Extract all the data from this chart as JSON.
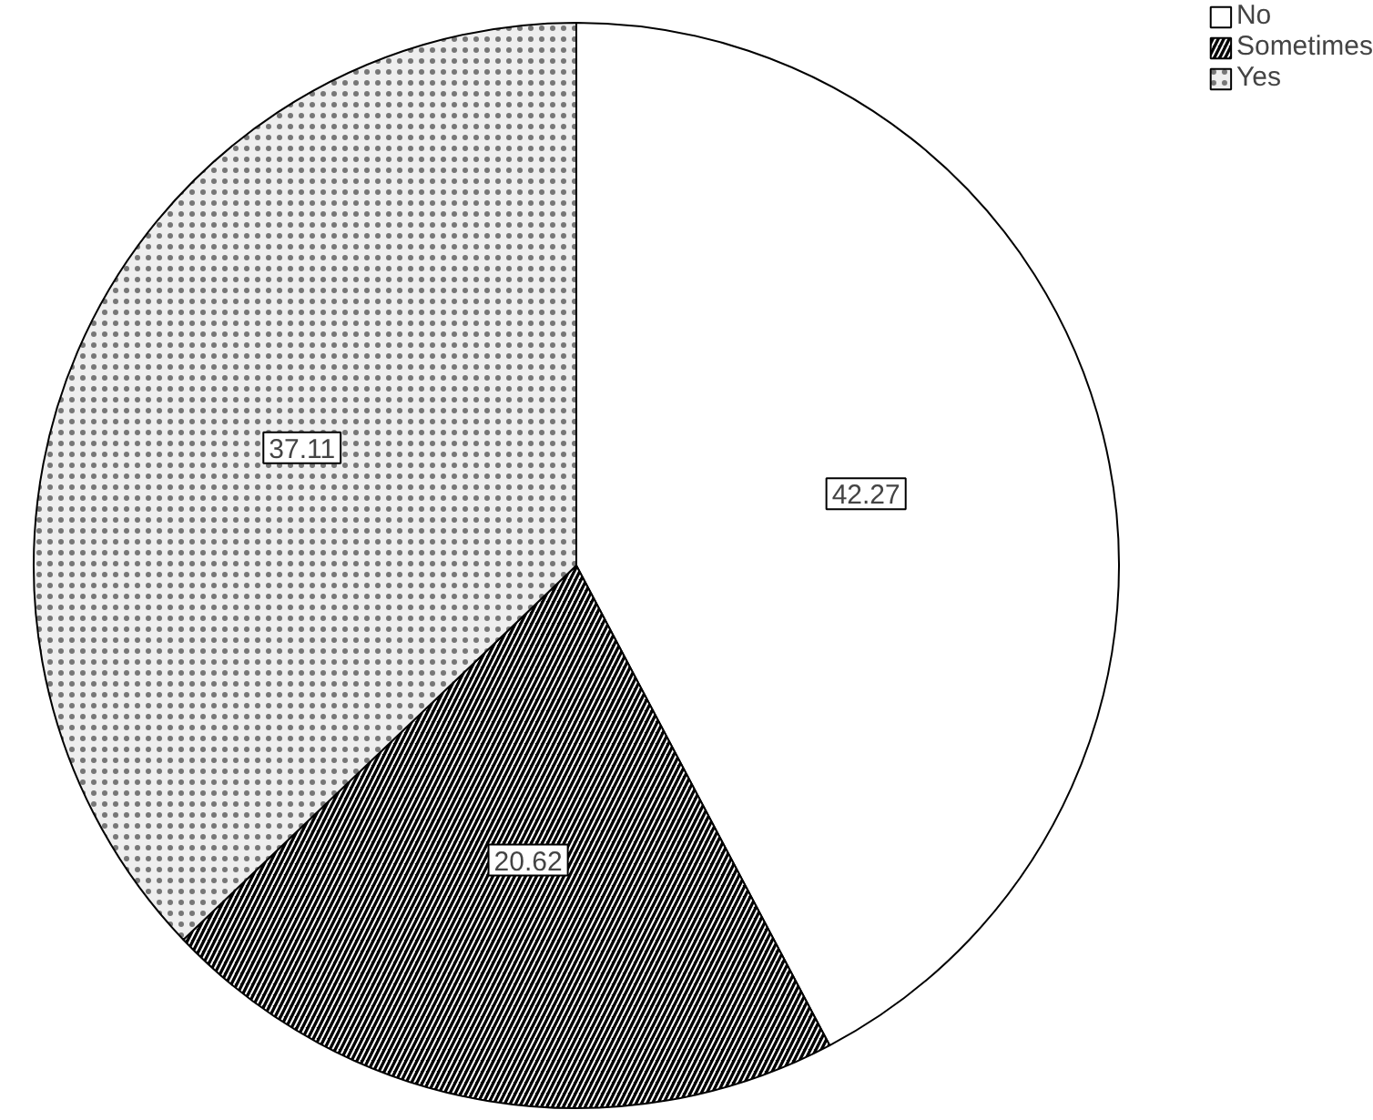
{
  "chart_data": {
    "type": "pie",
    "categories": [
      "No",
      "Sometimes",
      "Yes"
    ],
    "values": [
      42.27,
      20.62,
      37.11
    ],
    "colors": [
      "#ffffff",
      "#000000",
      "#eeeeee"
    ],
    "data_labels": true,
    "legend": "top right"
  }
}
